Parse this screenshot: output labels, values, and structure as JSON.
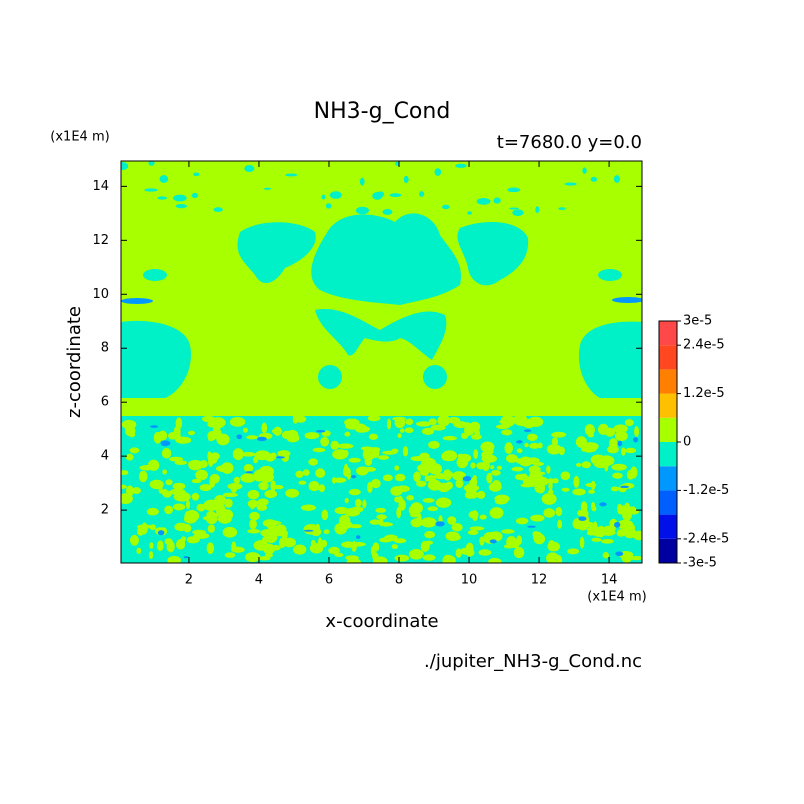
{
  "chart_data": {
    "type": "contour",
    "title": "NH3-g_Cond",
    "subtitle": "t=7680.0 y=0.0",
    "x_label": "x-coordinate",
    "y_label": "z-coordinate",
    "x_unit": "(x1E4 m)",
    "y_unit": "(x1E4 m)",
    "source": "./jupiter_NH3-g_Cond.nc",
    "xlim": [
      0.06,
      14.94
    ],
    "ylim": [
      0.04,
      14.94
    ],
    "xticks": [
      2,
      4,
      6,
      8,
      10,
      12,
      14
    ],
    "yticks": [
      2,
      4,
      6,
      8,
      10,
      12,
      14
    ],
    "levels": [
      -3e-05,
      -2.4e-05,
      -1.8e-05,
      -1.2e-05,
      -6e-06,
      0,
      6e-06,
      1.2e-05,
      1.8e-05,
      2.4e-05,
      3e-05
    ],
    "colors": [
      "#0000a0",
      "#0010e8",
      "#0060ff",
      "#0098ff",
      "#00f0c8",
      "#a8ff00",
      "#ffc000",
      "#ff8000",
      "#ff4820",
      "#ff4848"
    ],
    "colorbar_ticks": [
      {
        "value": 3e-05,
        "label": "3e-5"
      },
      {
        "value": 2.4e-05,
        "label": "2.4e-5"
      },
      {
        "value": 1.2e-05,
        "label": "1.2e-5"
      },
      0,
      {
        "value": -1.2e-05,
        "label": "-1.2e-5"
      },
      {
        "value": -2.4e-05,
        "label": "-2.4e-5"
      },
      {
        "value": -3e-05,
        "label": "-3e-5"
      }
    ]
  }
}
